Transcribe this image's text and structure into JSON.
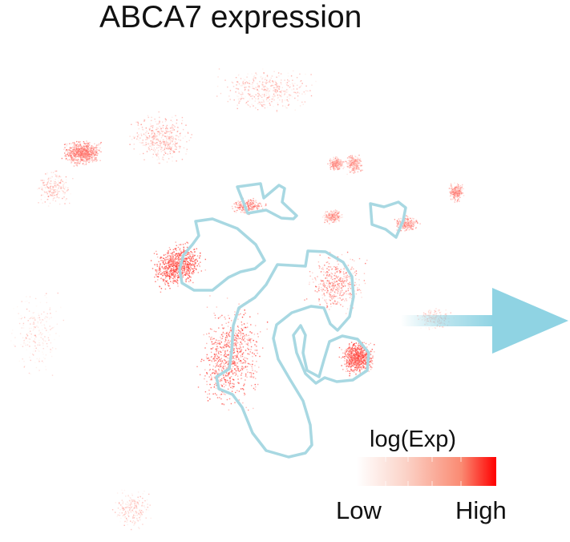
{
  "chart_data": {
    "type": "scatter",
    "title": "ABCA7 expression",
    "legend": {
      "title": "log(Exp)",
      "low_label": "Low",
      "high_label": "High",
      "placement": "bottom-right"
    },
    "colors": {
      "low": "#fff5f2",
      "high": "#ff0000",
      "outline": "#a8d8e2",
      "arrow": "#8fd3e3"
    },
    "clusters": [
      {
        "x": -1.0,
        "y": 5.2,
        "density": "medium",
        "level": 0.25
      },
      {
        "x": -4.0,
        "y": 3.8,
        "density": "medium",
        "level": 0.3
      },
      {
        "x": -6.2,
        "y": 3.4,
        "density": "high",
        "level": 0.45
      },
      {
        "x": -7.0,
        "y": 2.4,
        "density": "low",
        "level": 0.25
      },
      {
        "x": 1.0,
        "y": 3.1,
        "density": "low",
        "level": 0.35
      },
      {
        "x": 1.5,
        "y": 3.1,
        "density": "low",
        "level": 0.35
      },
      {
        "x": 4.4,
        "y": 2.3,
        "density": "low",
        "level": 0.4
      },
      {
        "x": -1.5,
        "y": 1.9,
        "density": "low",
        "level": 0.45,
        "outlined": true
      },
      {
        "x": 0.9,
        "y": 1.6,
        "density": "low",
        "level": 0.35
      },
      {
        "x": 3.0,
        "y": 1.4,
        "density": "low",
        "level": 0.4,
        "outlined": true
      },
      {
        "x": -3.5,
        "y": 0.2,
        "density": "high",
        "level": 0.65,
        "outlined": true
      },
      {
        "x": 1.0,
        "y": -0.3,
        "density": "medium",
        "level": 0.45,
        "outlined": true
      },
      {
        "x": -2.0,
        "y": -2.4,
        "density": "high",
        "level": 0.6,
        "outlined": true
      },
      {
        "x": 1.6,
        "y": -2.4,
        "density": "high",
        "level": 0.6,
        "outlined": true
      },
      {
        "x": -7.5,
        "y": -1.7,
        "density": "low",
        "level": 0.15
      },
      {
        "x": 3.8,
        "y": -1.3,
        "density": "low",
        "level": 0.15
      },
      {
        "x": -4.8,
        "y": -6.7,
        "density": "low",
        "level": 0.2
      }
    ]
  }
}
